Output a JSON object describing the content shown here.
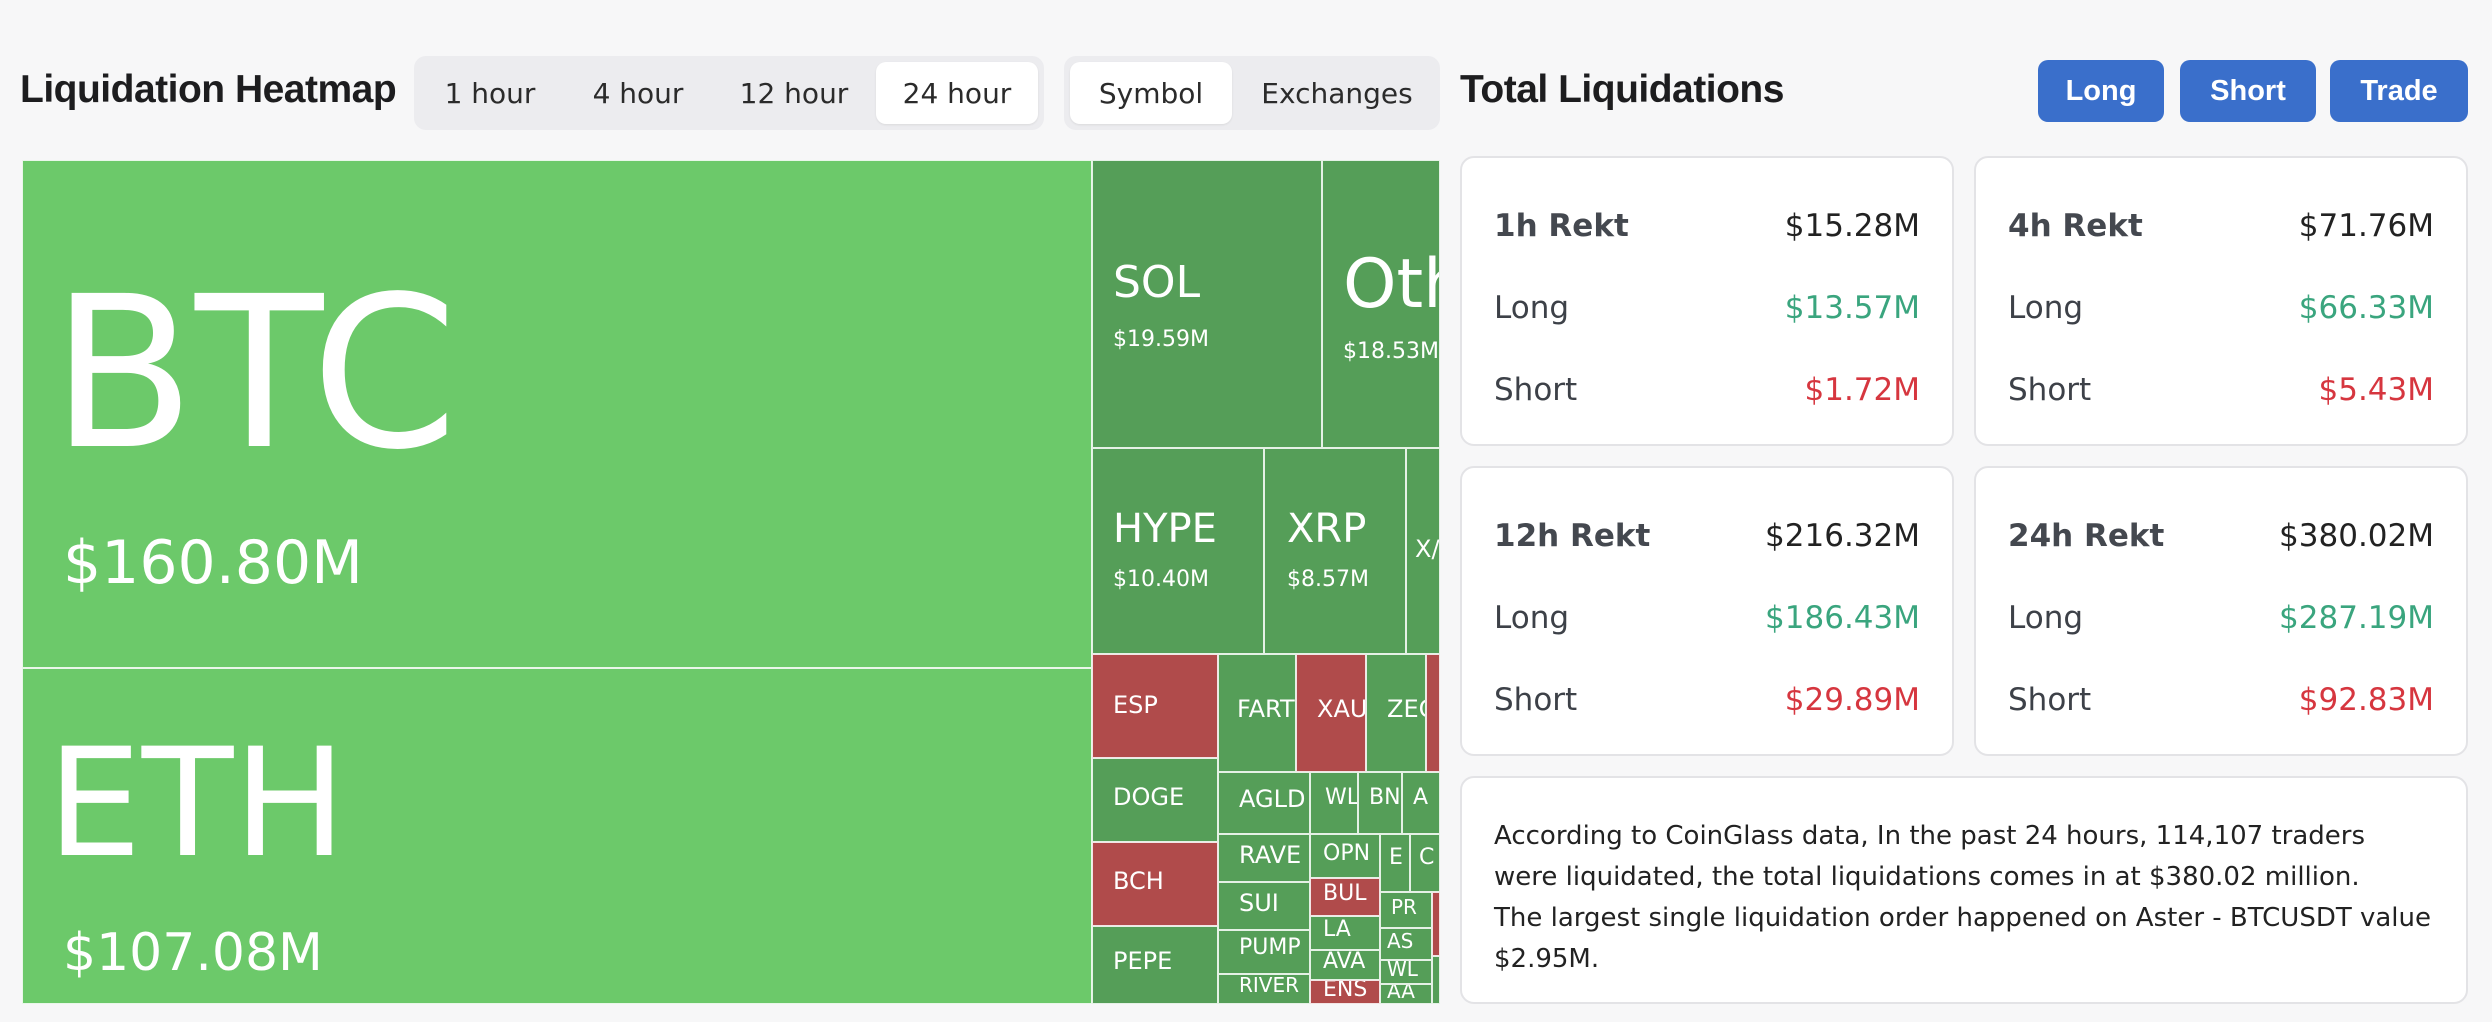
{
  "heatmap": {
    "title": "Liquidation Heatmap",
    "time_tabs": [
      "1 hour",
      "4 hour",
      "12 hour",
      "24 hour"
    ],
    "active_time_tab": "24 hour",
    "view_tabs": [
      "Symbol",
      "Exchanges"
    ],
    "active_view_tab": "Symbol",
    "colors": {
      "long_dominant_light": "#6cc96a",
      "long_dominant": "#559e58",
      "short_dominant": "#b04b4b"
    },
    "tiles": [
      {
        "symbol": "BTC",
        "value": "$160.80M"
      },
      {
        "symbol": "ETH",
        "value": "$107.08M"
      },
      {
        "symbol": "SOL",
        "value": "$19.59M"
      },
      {
        "symbol": "Oth",
        "value": "$18.53M"
      },
      {
        "symbol": "HYPE",
        "value": "$10.40M"
      },
      {
        "symbol": "XRP",
        "value": "$8.57M"
      },
      {
        "symbol": "X/",
        "value": ""
      },
      {
        "symbol": "ESP",
        "value": ""
      },
      {
        "symbol": "FART",
        "value": ""
      },
      {
        "symbol": "XAU",
        "value": ""
      },
      {
        "symbol": "ZEC",
        "value": ""
      },
      {
        "symbol": "",
        "value": ""
      },
      {
        "symbol": "DOGE",
        "value": ""
      },
      {
        "symbol": "AGLD",
        "value": ""
      },
      {
        "symbol": "BCH",
        "value": ""
      },
      {
        "symbol": "RAVE",
        "value": ""
      },
      {
        "symbol": "SUI",
        "value": ""
      },
      {
        "symbol": "PUMP",
        "value": ""
      },
      {
        "symbol": "RIVER",
        "value": ""
      },
      {
        "symbol": "PEPE",
        "value": ""
      },
      {
        "symbol": "WL",
        "value": ""
      },
      {
        "symbol": "BN",
        "value": ""
      },
      {
        "symbol": "A",
        "value": ""
      },
      {
        "symbol": "OPN",
        "value": ""
      },
      {
        "symbol": "E",
        "value": ""
      },
      {
        "symbol": "C",
        "value": ""
      },
      {
        "symbol": "BUL",
        "value": ""
      },
      {
        "symbol": "PR",
        "value": ""
      },
      {
        "symbol": "LA",
        "value": ""
      },
      {
        "symbol": "AS",
        "value": ""
      },
      {
        "symbol": "AVA",
        "value": ""
      },
      {
        "symbol": "WL",
        "value": ""
      },
      {
        "symbol": "ENS",
        "value": ""
      },
      {
        "symbol": "AA",
        "value": ""
      },
      {
        "symbol": "",
        "value": ""
      },
      {
        "symbol": "",
        "value": ""
      }
    ]
  },
  "totals": {
    "title": "Total Liquidations",
    "buttons": [
      "Long",
      "Short",
      "Trade"
    ],
    "cards": [
      {
        "label": "1h Rekt",
        "total": "$15.28M",
        "long_label": "Long",
        "long": "$13.57M",
        "short_label": "Short",
        "short": "$1.72M"
      },
      {
        "label": "4h Rekt",
        "total": "$71.76M",
        "long_label": "Long",
        "long": "$66.33M",
        "short_label": "Short",
        "short": "$5.43M"
      },
      {
        "label": "12h Rekt",
        "total": "$216.32M",
        "long_label": "Long",
        "long": "$186.43M",
        "short_label": "Short",
        "short": "$29.89M"
      },
      {
        "label": "24h Rekt",
        "total": "$380.02M",
        "long_label": "Long",
        "long": "$287.19M",
        "short_label": "Short",
        "short": "$92.83M"
      }
    ],
    "summary_line1": "According to CoinGlass data, In the past 24 hours, 114,107 traders were liquidated, the total liquidations comes in at $380.02 million.",
    "summary_line2": "The largest single liquidation order happened on Aster - BTCUSDT value $2.95M."
  }
}
